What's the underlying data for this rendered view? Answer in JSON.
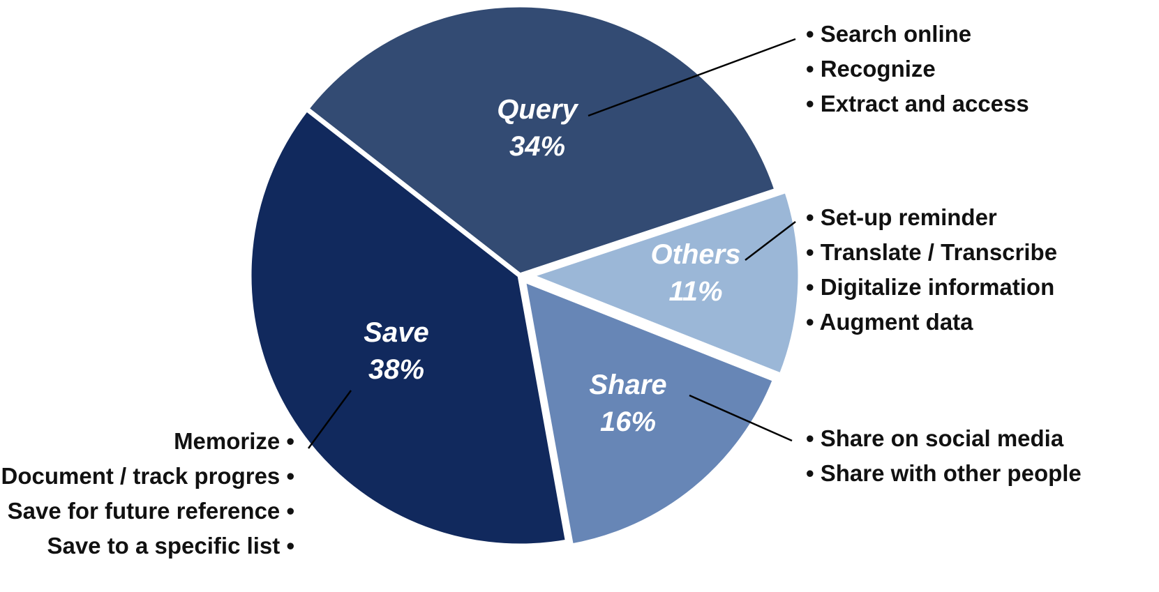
{
  "chart_data": {
    "type": "pie",
    "slices": [
      {
        "label": "Query",
        "value": 34,
        "display": "34%",
        "color": "#334b73",
        "items": [
          "Search online",
          "Recognize",
          "Extract and access"
        ]
      },
      {
        "label": "Others",
        "value": 11,
        "display": "11%",
        "color": "#9bb7d7",
        "items": [
          "Set-up reminder",
          "Translate / Transcribe",
          "Digitalize information",
          "Augment data"
        ]
      },
      {
        "label": "Share",
        "value": 16,
        "display": "16%",
        "color": "#6786b6",
        "items": [
          "Share on social media",
          "Share with other people"
        ]
      },
      {
        "label": "Save",
        "value": 38,
        "display": "38%",
        "color": "#11295d",
        "items": [
          "Memorize",
          "Document / track progres",
          "Save for future reference",
          "Save to a specific list"
        ]
      }
    ]
  }
}
